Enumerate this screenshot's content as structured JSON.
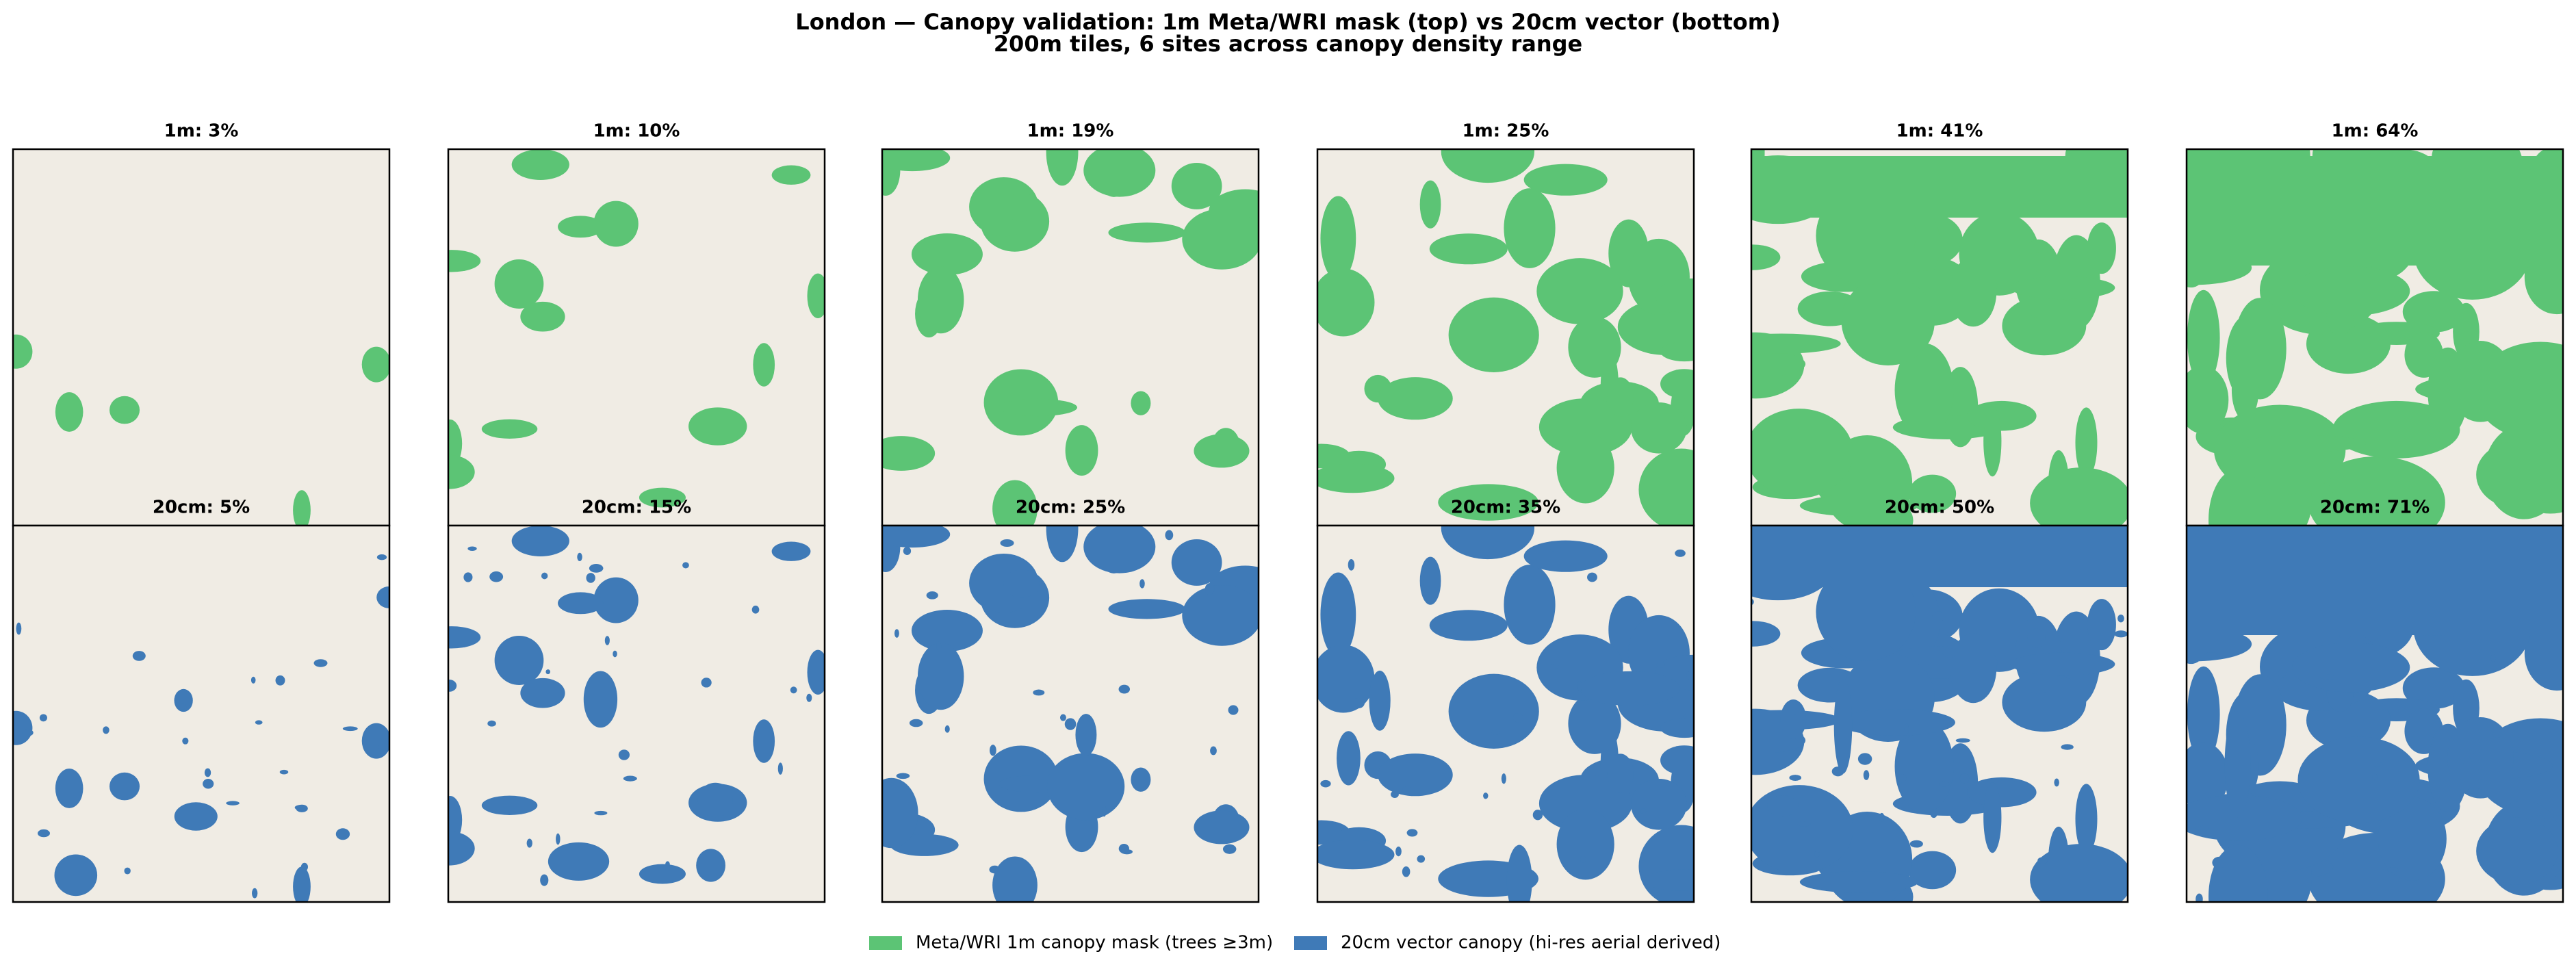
{
  "title": "London — Canopy validation: 1m Meta/WRI mask (top) vs 20cm vector (bottom)",
  "subtitle": "200m tiles, 6 sites across canopy density range",
  "panels": [
    {
      "top": "1m: 3%",
      "bottom": "20cm: 5%"
    },
    {
      "top": "1m: 10%",
      "bottom": "20cm: 15%"
    },
    {
      "top": "1m: 19%",
      "bottom": "20cm: 25%"
    },
    {
      "top": "1m: 25%",
      "bottom": "20cm: 35%"
    },
    {
      "top": "1m: 41%",
      "bottom": "20cm: 50%"
    },
    {
      "top": "1m: 64%",
      "bottom": "20cm: 71%"
    }
  ],
  "legend": [
    {
      "label": "Meta/WRI 1m canopy mask (trees ≥3m)",
      "color": "#5cc475"
    },
    {
      "label": "20cm vector canopy (hi-res aerial derived)",
      "color": "#3f7ab7"
    }
  ]
}
